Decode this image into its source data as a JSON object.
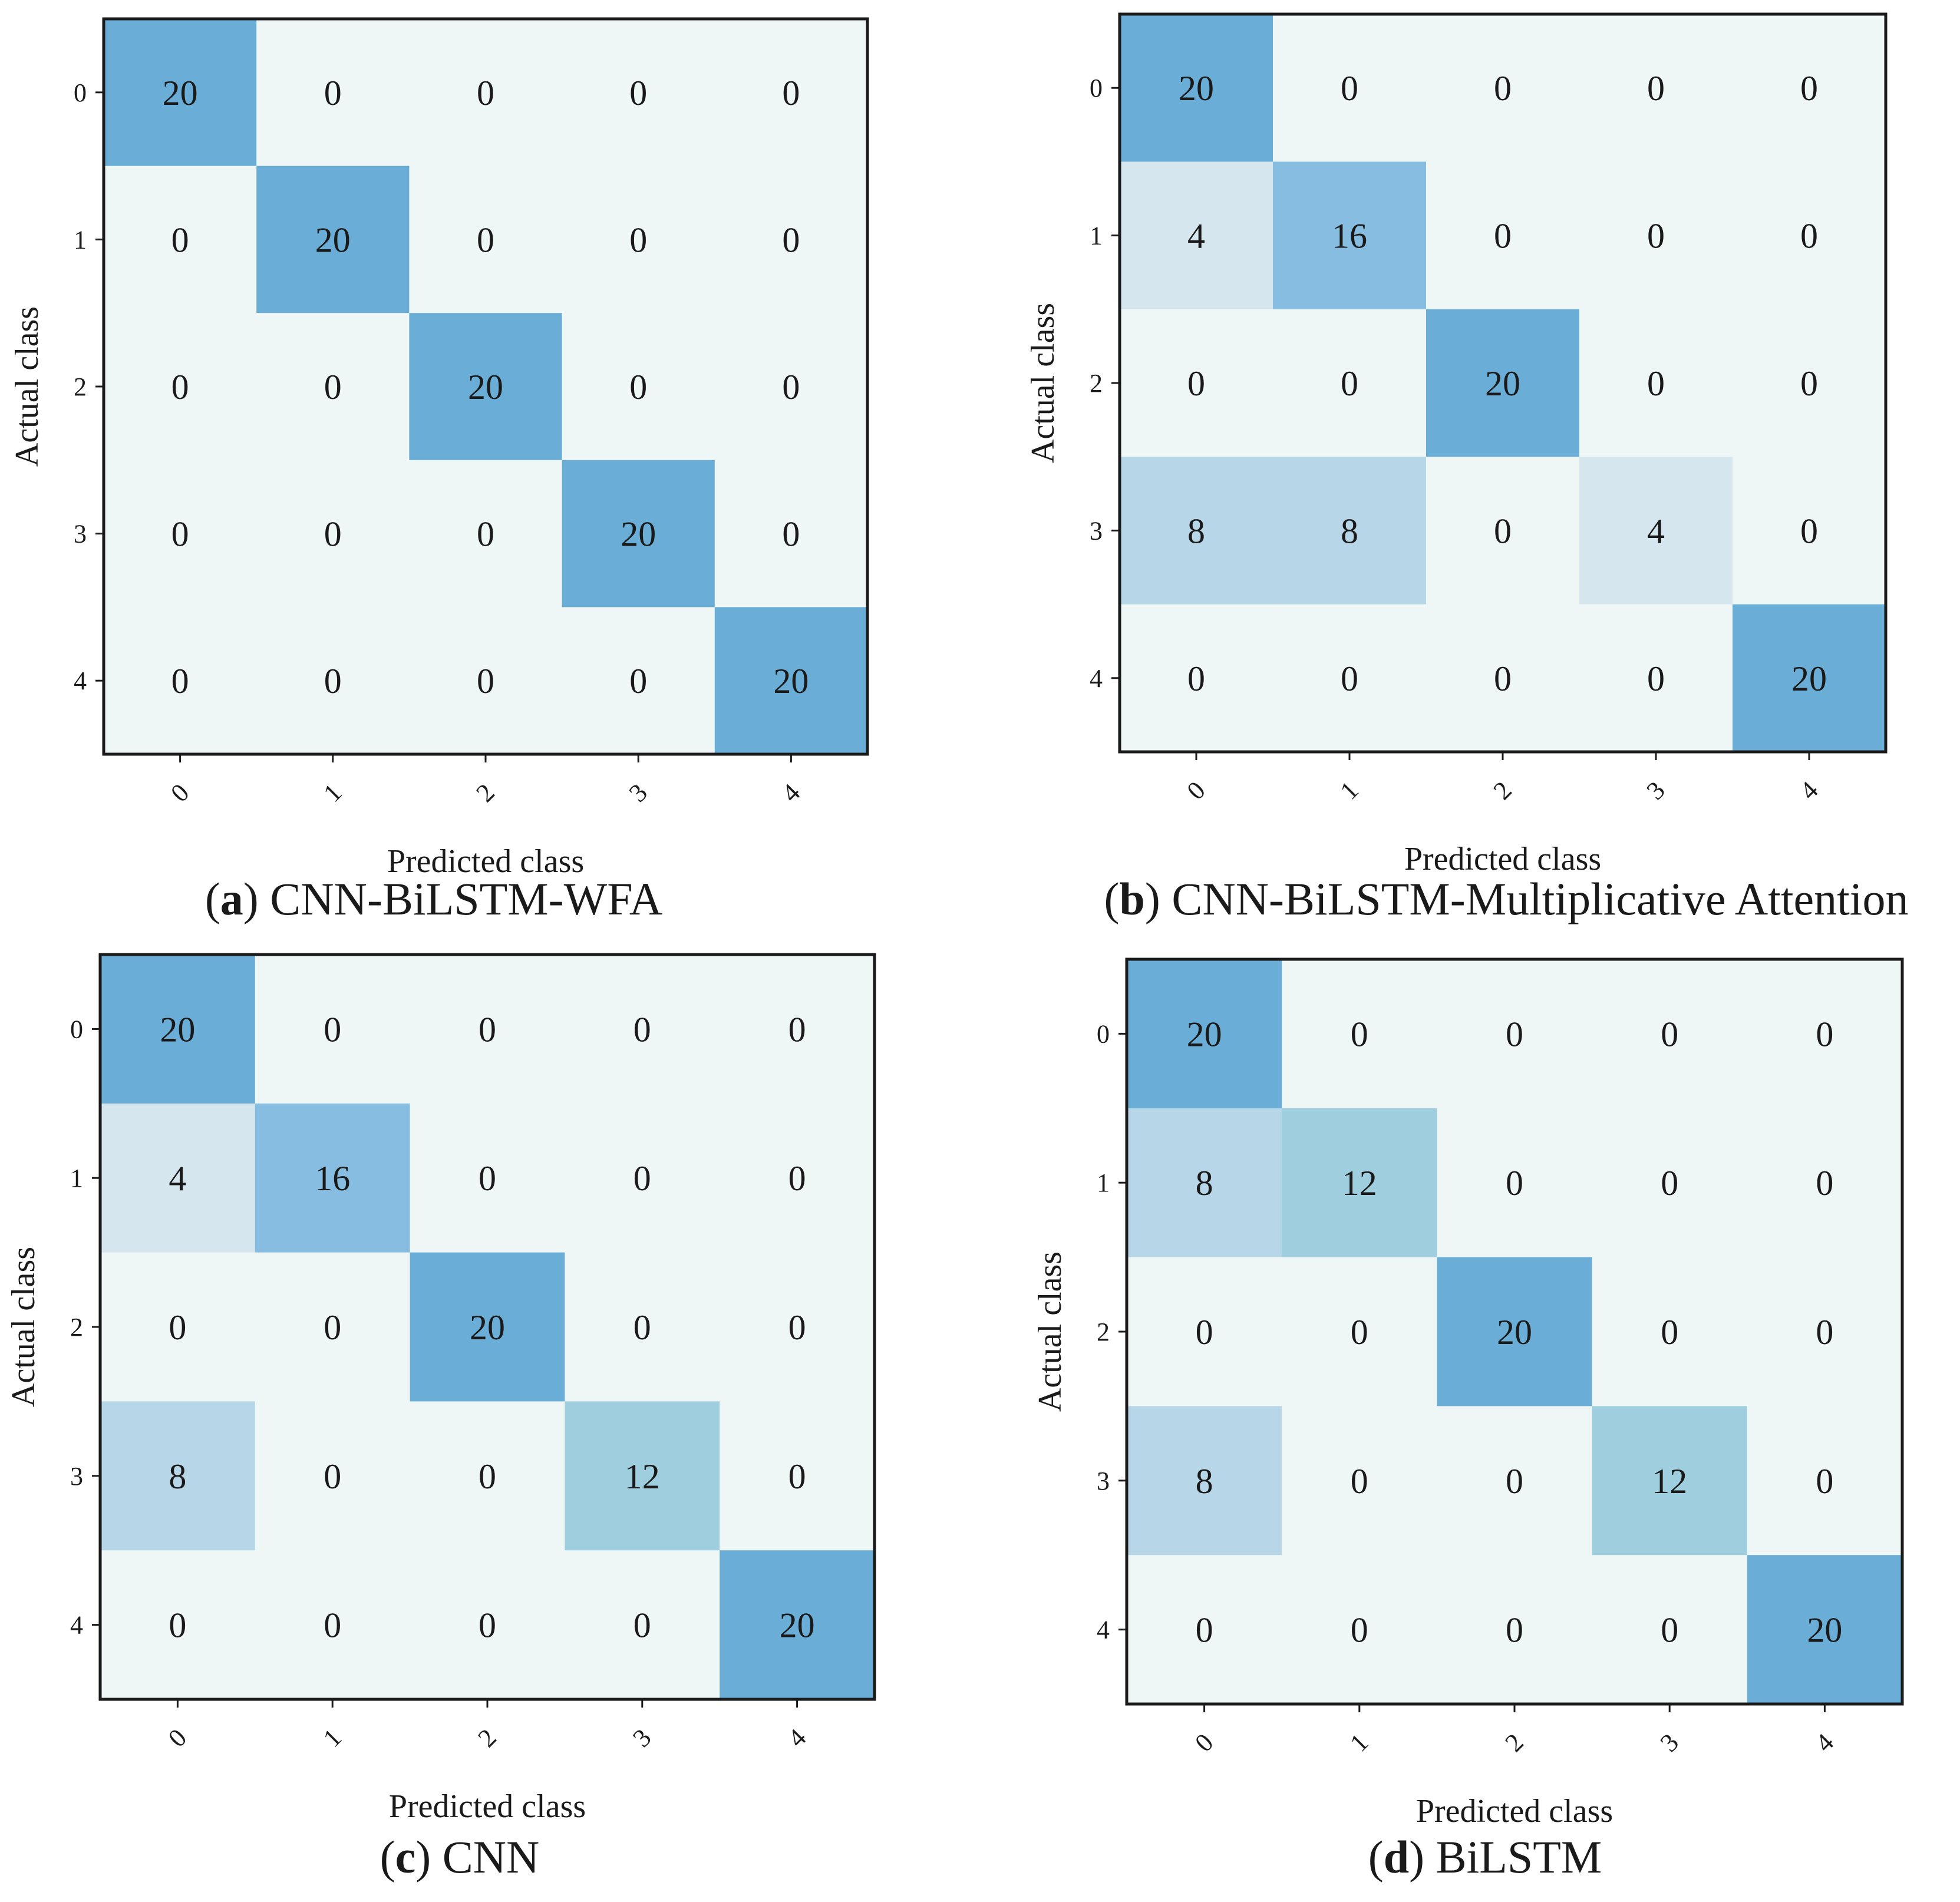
{
  "chart_data": [
    {
      "type": "heatmap",
      "panel_letter": "a",
      "title": "CNN-BiLSTM-WFA",
      "xlabel": "Predicted class",
      "ylabel": "Actual class",
      "x_categories": [
        "0",
        "1",
        "2",
        "3",
        "4"
      ],
      "y_categories": [
        "0",
        "1",
        "2",
        "3",
        "4"
      ],
      "matrix": [
        [
          20,
          0,
          0,
          0,
          0
        ],
        [
          0,
          20,
          0,
          0,
          0
        ],
        [
          0,
          0,
          20,
          0,
          0
        ],
        [
          0,
          0,
          0,
          20,
          0
        ],
        [
          0,
          0,
          0,
          0,
          20
        ]
      ],
      "value_range": [
        0,
        20
      ]
    },
    {
      "type": "heatmap",
      "panel_letter": "b",
      "title": "CNN-BiLSTM-Multiplicative Attention",
      "xlabel": "Predicted class",
      "ylabel": "Actual class",
      "x_categories": [
        "0",
        "1",
        "2",
        "3",
        "4"
      ],
      "y_categories": [
        "0",
        "1",
        "2",
        "3",
        "4"
      ],
      "matrix": [
        [
          20,
          0,
          0,
          0,
          0
        ],
        [
          4,
          16,
          0,
          0,
          0
        ],
        [
          0,
          0,
          20,
          0,
          0
        ],
        [
          8,
          8,
          0,
          4,
          0
        ],
        [
          0,
          0,
          0,
          0,
          20
        ]
      ],
      "value_range": [
        0,
        20
      ]
    },
    {
      "type": "heatmap",
      "panel_letter": "c",
      "title": "CNN",
      "xlabel": "Predicted class",
      "ylabel": "Actual class",
      "x_categories": [
        "0",
        "1",
        "2",
        "3",
        "4"
      ],
      "y_categories": [
        "0",
        "1",
        "2",
        "3",
        "4"
      ],
      "matrix": [
        [
          20,
          0,
          0,
          0,
          0
        ],
        [
          4,
          16,
          0,
          0,
          0
        ],
        [
          0,
          0,
          20,
          0,
          0
        ],
        [
          8,
          0,
          0,
          12,
          0
        ],
        [
          0,
          0,
          0,
          0,
          20
        ]
      ],
      "value_range": [
        0,
        20
      ]
    },
    {
      "type": "heatmap",
      "panel_letter": "d",
      "title": "BiLSTM",
      "xlabel": "Predicted class",
      "ylabel": "Actual class",
      "x_categories": [
        "0",
        "1",
        "2",
        "3",
        "4"
      ],
      "y_categories": [
        "0",
        "1",
        "2",
        "3",
        "4"
      ],
      "matrix": [
        [
          20,
          0,
          0,
          0,
          0
        ],
        [
          8,
          12,
          0,
          0,
          0
        ],
        [
          0,
          0,
          20,
          0,
          0
        ],
        [
          8,
          0,
          0,
          12,
          0
        ],
        [
          0,
          0,
          0,
          0,
          20
        ]
      ],
      "value_range": [
        0,
        20
      ]
    }
  ],
  "colors": {
    "0": "#eef6f6",
    "4": "#d5e6ee",
    "8": "#b7d7e8",
    "12": "#9fcfdf",
    "16": "#87bde0",
    "20": "#6aaed8",
    "frame": "#1a1a1a"
  }
}
